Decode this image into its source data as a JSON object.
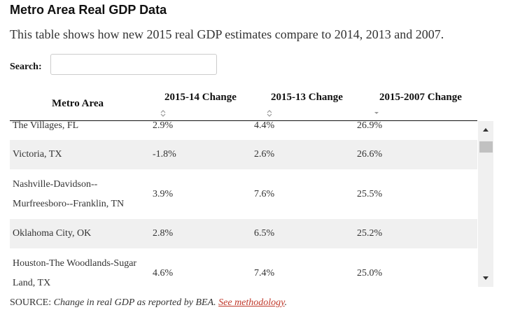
{
  "header": {
    "title": "Metro Area Real GDP Data",
    "subtitle": "This table shows how new 2015 real GDP estimates compare to 2014, 2013 and 2007."
  },
  "search": {
    "label": "Search:"
  },
  "table": {
    "columns": [
      "Metro Area",
      "2015-14 Change",
      "2015-13 Change",
      "2015-2007 Change"
    ],
    "rows": [
      [
        "The Villages, FL",
        "2.9%",
        "4.4%",
        "26.9%"
      ],
      [
        "Victoria, TX",
        "-1.8%",
        "2.6%",
        "26.6%"
      ],
      [
        "Nashville-Davidson--Murfreesboro--Franklin, TN",
        "3.9%",
        "7.6%",
        "25.5%"
      ],
      [
        "Oklahoma City, OK",
        "2.8%",
        "6.5%",
        "25.2%"
      ],
      [
        "Houston-The Woodlands-Sugar Land, TX",
        "4.6%",
        "7.4%",
        "25.0%"
      ]
    ]
  },
  "footer": {
    "prefix": "SOURCE:",
    "text": "Change in real GDP as reported by BEA.",
    "link": "See methodology",
    "suffix": "."
  }
}
